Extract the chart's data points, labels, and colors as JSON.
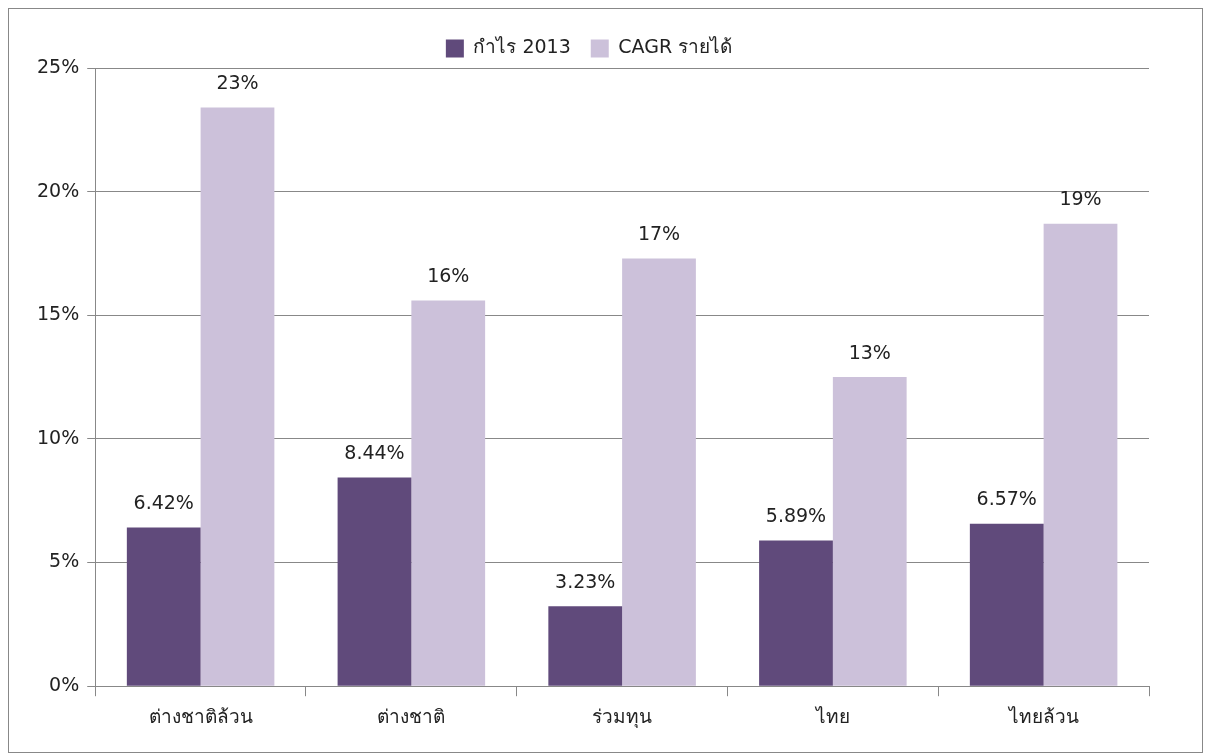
{
  "chart_data": {
    "type": "bar",
    "categories": [
      "ต่างชาติล้วน",
      "ต่างชาติ",
      "ร่วมทุน",
      "ไทย",
      "ไทยล้วน"
    ],
    "series": [
      {
        "name": "กำไร 2013",
        "color": "#604a7b",
        "values": [
          6.42,
          8.44,
          3.23,
          5.89,
          6.57
        ],
        "value_labels": [
          "6.42%",
          "8.44%",
          "3.23%",
          "5.89%",
          "6.57%"
        ]
      },
      {
        "name": "CAGR รายได้",
        "color": "#ccc1da",
        "values": [
          23.4,
          15.6,
          17.3,
          12.5,
          18.7
        ],
        "value_labels": [
          "23%",
          "16%",
          "17%",
          "13%",
          "19%"
        ]
      }
    ],
    "ylim": [
      0,
      25
    ],
    "yticks": [
      {
        "value": 0,
        "label": "0%"
      },
      {
        "value": 5,
        "label": "5%"
      },
      {
        "value": 10,
        "label": "10%"
      },
      {
        "value": 15,
        "label": "15%"
      },
      {
        "value": 20,
        "label": "20%"
      },
      {
        "value": 25,
        "label": "25%"
      }
    ],
    "grid": "y",
    "legend": "top"
  }
}
